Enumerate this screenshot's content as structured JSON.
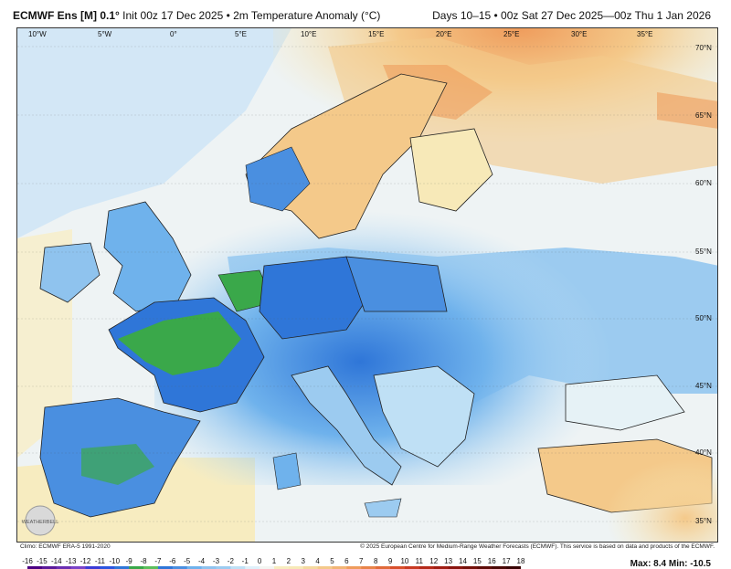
{
  "header": {
    "model": "ECMWF Ens [M] 0.1",
    "degree": "°",
    "init": "Init 00z 17 Dec 2025 • 2m Temperature Anomaly (°C)",
    "valid": "Days 10–15 • 00z Sat 27 Dec 2025—00z Thu 1 Jan 2026"
  },
  "map": {
    "lon_labels": [
      "10°W",
      "5°W",
      "0°",
      "5°E",
      "10°E",
      "15°E",
      "20°E",
      "25°E",
      "30°E",
      "35°E"
    ],
    "lat_labels": [
      "70°N",
      "65°N",
      "60°N",
      "55°N",
      "50°N",
      "45°N",
      "40°N",
      "35°N"
    ],
    "colors": {
      "sea_neutral": "#f3f5f2",
      "warm_light": "#f7e9b8",
      "warm_mid": "#f4c98a",
      "warm_strong": "#ef9c5c",
      "cool_light": "#bfe0f5",
      "cool_mid": "#6fb2ec",
      "cool_strong": "#2f76d8",
      "cold_green": "#3aa84a",
      "border": "#222222"
    }
  },
  "footer": {
    "climo": "Climo: ECMWF ERA-5 1991-2020",
    "credit": "© 2025 European Centre for Medium-Range Weather Forecasts (ECMWF). This service is based on data and products of the ECMWF.",
    "logo": "WEATHERBELL"
  },
  "scale": {
    "ticks": [
      "-16",
      "-15",
      "-14",
      "-13",
      "-12",
      "-11",
      "-10",
      "-9",
      "-8",
      "-7",
      "-6",
      "-5",
      "-4",
      "-3",
      "-2",
      "-1",
      "0",
      "1",
      "2",
      "3",
      "4",
      "5",
      "6",
      "7",
      "8",
      "9",
      "10",
      "11",
      "12",
      "13",
      "14",
      "15",
      "16",
      "17",
      "18"
    ],
    "max": "Max: 8.4",
    "min": "Min: -10.5"
  }
}
